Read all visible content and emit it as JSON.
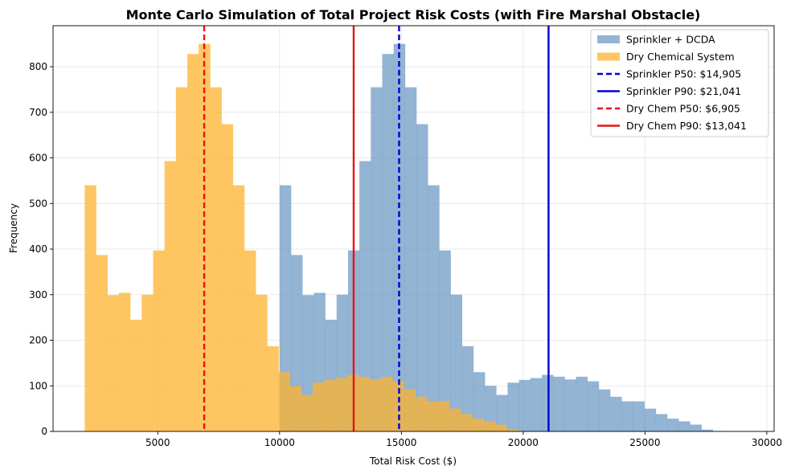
{
  "chart_data": {
    "type": "bar",
    "title": "Monte Carlo Simulation of Total Project Risk Costs (with Fire Marshal Obstacle)",
    "xlabel": "Total Risk Cost ($)",
    "ylabel": "Frequency",
    "xlim": [
      700,
      30300
    ],
    "ylim": [
      0,
      890
    ],
    "xticks": [
      5000,
      10000,
      15000,
      20000,
      25000,
      30000
    ],
    "yticks": [
      0,
      100,
      200,
      300,
      400,
      500,
      600,
      700,
      800
    ],
    "grid": true,
    "legend_position": "top-right",
    "series": [
      {
        "name": "Sprinkler + DCDA",
        "color": "#6f9bc4",
        "opacity": 0.75,
        "bin_start": 10000,
        "bin_width": 468,
        "values": [
          540,
          387,
          299,
          304,
          245,
          300,
          397,
          593,
          755,
          828,
          850,
          755,
          674,
          540,
          397,
          300,
          187,
          130,
          100,
          80,
          107,
          113,
          117,
          124,
          120,
          114,
          120,
          110,
          92,
          76,
          66,
          66,
          50,
          38,
          28,
          22,
          15,
          4,
          1
        ]
      },
      {
        "name": "Dry Chemical System",
        "color": "#fdb32f",
        "opacity": 0.75,
        "bin_start": 2000,
        "bin_width": 468,
        "values": [
          540,
          387,
          299,
          304,
          245,
          300,
          397,
          593,
          755,
          828,
          850,
          755,
          674,
          540,
          397,
          300,
          187,
          130,
          100,
          80,
          107,
          113,
          117,
          124,
          120,
          114,
          120,
          110,
          92,
          76,
          66,
          66,
          50,
          38,
          28,
          22,
          15,
          4,
          1
        ]
      }
    ],
    "reference_lines": [
      {
        "label": "Sprinkler P50: $14,905",
        "x": 14905,
        "color": "#0000d0",
        "dashed": true
      },
      {
        "label": "Sprinkler P90: $21,041",
        "x": 21041,
        "color": "#0000d0",
        "dashed": false
      },
      {
        "label": "Dry Chem P50: $6,905",
        "x": 6905,
        "color": "#e8140f",
        "dashed": true
      },
      {
        "label": "Dry Chem P90: $13,041",
        "x": 13041,
        "color": "#e8140f",
        "dashed": false
      }
    ]
  }
}
